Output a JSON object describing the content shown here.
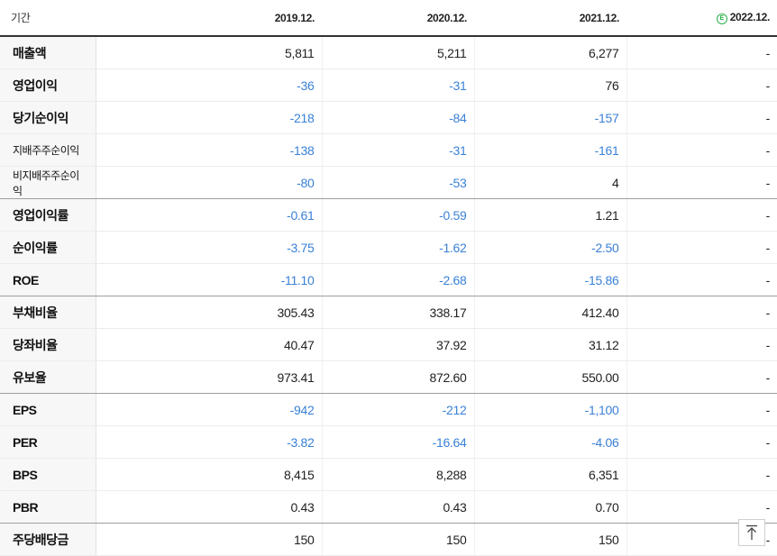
{
  "table": {
    "header_label": "기간",
    "estimate_marker": "E",
    "columns": [
      "2019.12.",
      "2020.12.",
      "2021.12.",
      "2022.12."
    ],
    "rows": [
      {
        "label": "매출액",
        "values": [
          "5,811",
          "5,211",
          "6,277",
          "-"
        ]
      },
      {
        "label": "영업이익",
        "values": [
          "-36",
          "-31",
          "76",
          "-"
        ]
      },
      {
        "label": "당기순이익",
        "values": [
          "-218",
          "-84",
          "-157",
          "-"
        ]
      },
      {
        "label": "지배주주순이익",
        "values": [
          "-138",
          "-31",
          "-161",
          "-"
        ]
      },
      {
        "label": "비지배주주순이익",
        "values": [
          "-80",
          "-53",
          "4",
          "-"
        ]
      },
      {
        "label": "영업이익률",
        "values": [
          "-0.61",
          "-0.59",
          "1.21",
          "-"
        ]
      },
      {
        "label": "순이익률",
        "values": [
          "-3.75",
          "-1.62",
          "-2.50",
          "-"
        ]
      },
      {
        "label": "ROE",
        "values": [
          "-11.10",
          "-2.68",
          "-15.86",
          "-"
        ]
      },
      {
        "label": "부채비율",
        "values": [
          "305.43",
          "338.17",
          "412.40",
          "-"
        ]
      },
      {
        "label": "당좌비율",
        "values": [
          "40.47",
          "37.92",
          "31.12",
          "-"
        ]
      },
      {
        "label": "유보율",
        "values": [
          "973.41",
          "872.60",
          "550.00",
          "-"
        ]
      },
      {
        "label": "EPS",
        "values": [
          "-942",
          "-212",
          "-1,100",
          "-"
        ]
      },
      {
        "label": "PER",
        "values": [
          "-3.82",
          "-16.64",
          "-4.06",
          "-"
        ]
      },
      {
        "label": "BPS",
        "values": [
          "8,415",
          "8,288",
          "6,351",
          "-"
        ]
      },
      {
        "label": "PBR",
        "values": [
          "0.43",
          "0.43",
          "0.70",
          "-"
        ]
      },
      {
        "label": "주당배당금",
        "values": [
          "150",
          "150",
          "150",
          "-"
        ]
      }
    ]
  },
  "colors": {
    "negative": "#3a81d6",
    "estimate_badge": "#2bb04a"
  },
  "icons": {
    "top_button": "arrow-up-to-top-icon"
  }
}
